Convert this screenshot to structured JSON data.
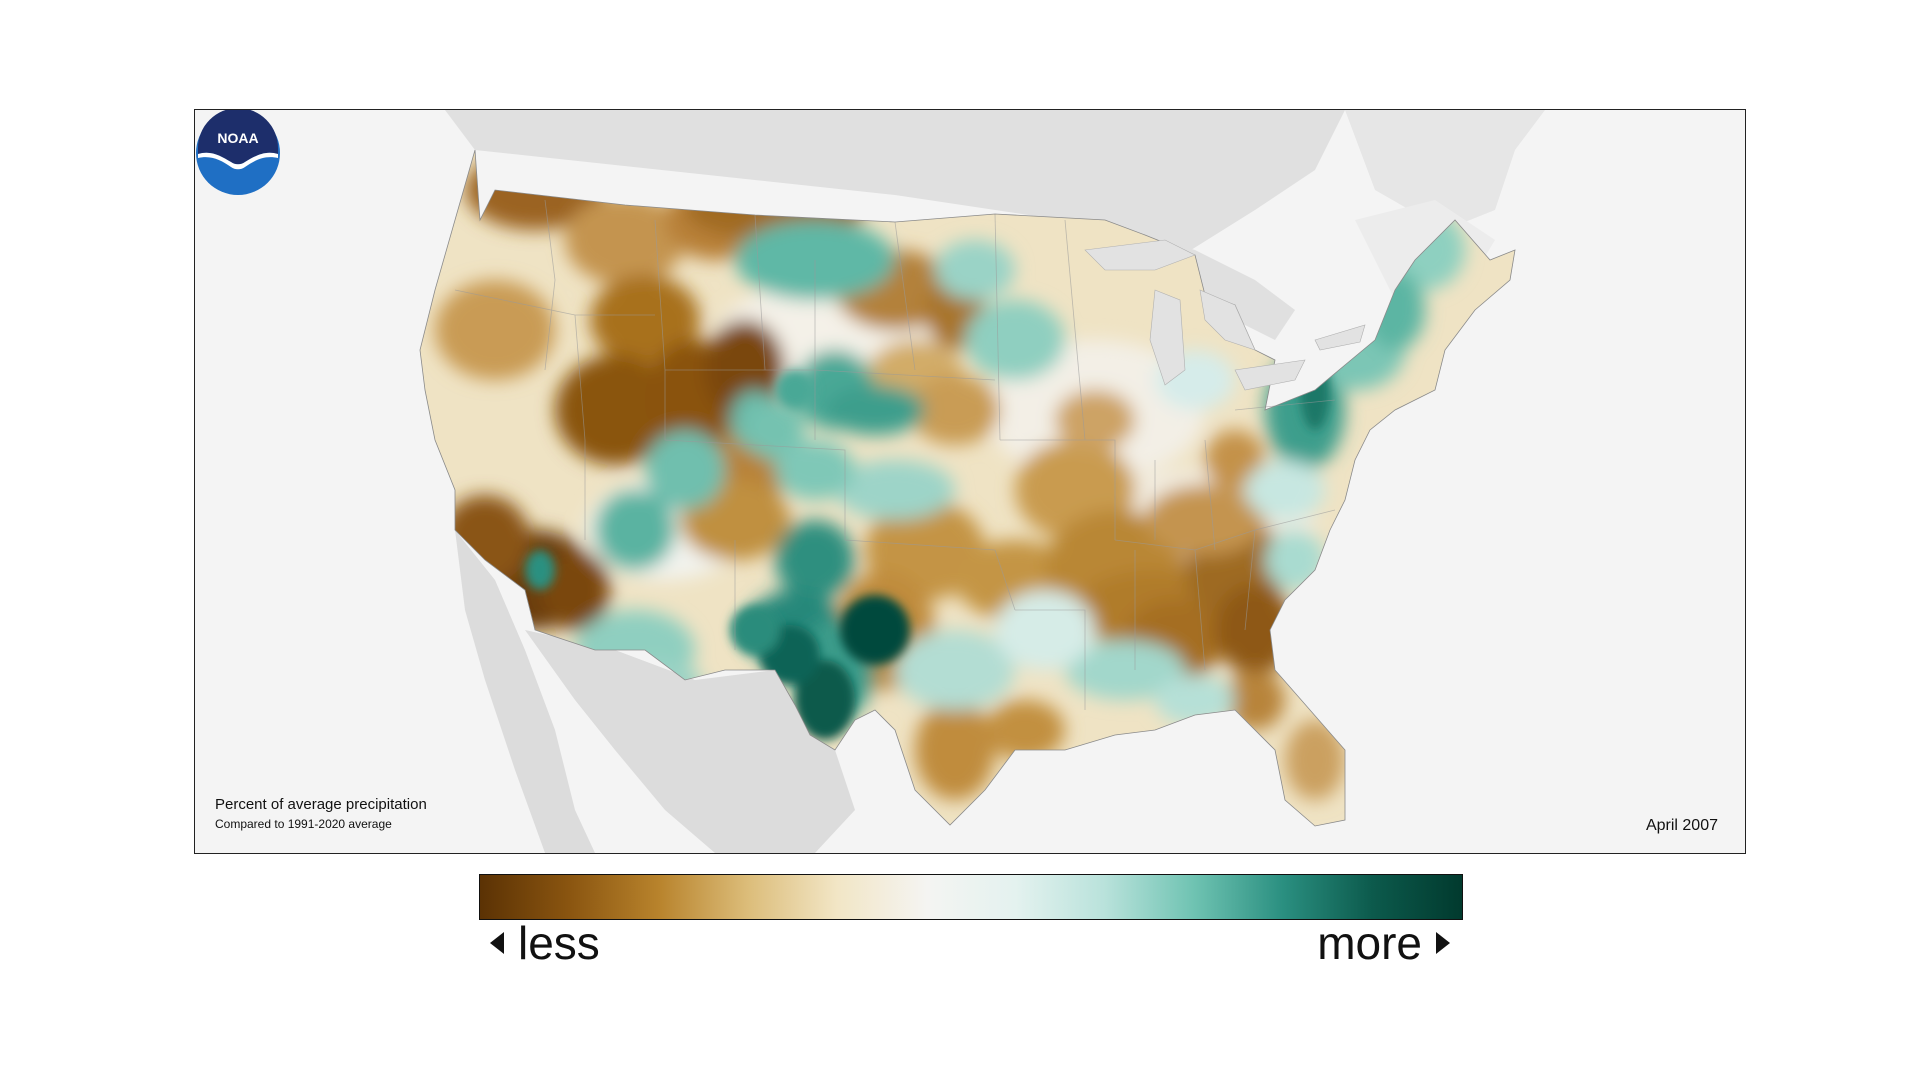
{
  "map": {
    "caption_title": "Percent of average precipitation",
    "caption_subtitle": "Compared to 1991-2020 average",
    "date": "April 2007",
    "logo_text": "NOAA"
  },
  "legend": {
    "less_label": "less",
    "more_label": "more",
    "colors": [
      "#5b3204",
      "#8a5510",
      "#b8832c",
      "#dcbd7a",
      "#f2e6c6",
      "#f4f4f2",
      "#e4f2ef",
      "#b9e2db",
      "#6fc3b2",
      "#2a8f80",
      "#0c5a4c",
      "#013a2e"
    ]
  }
}
